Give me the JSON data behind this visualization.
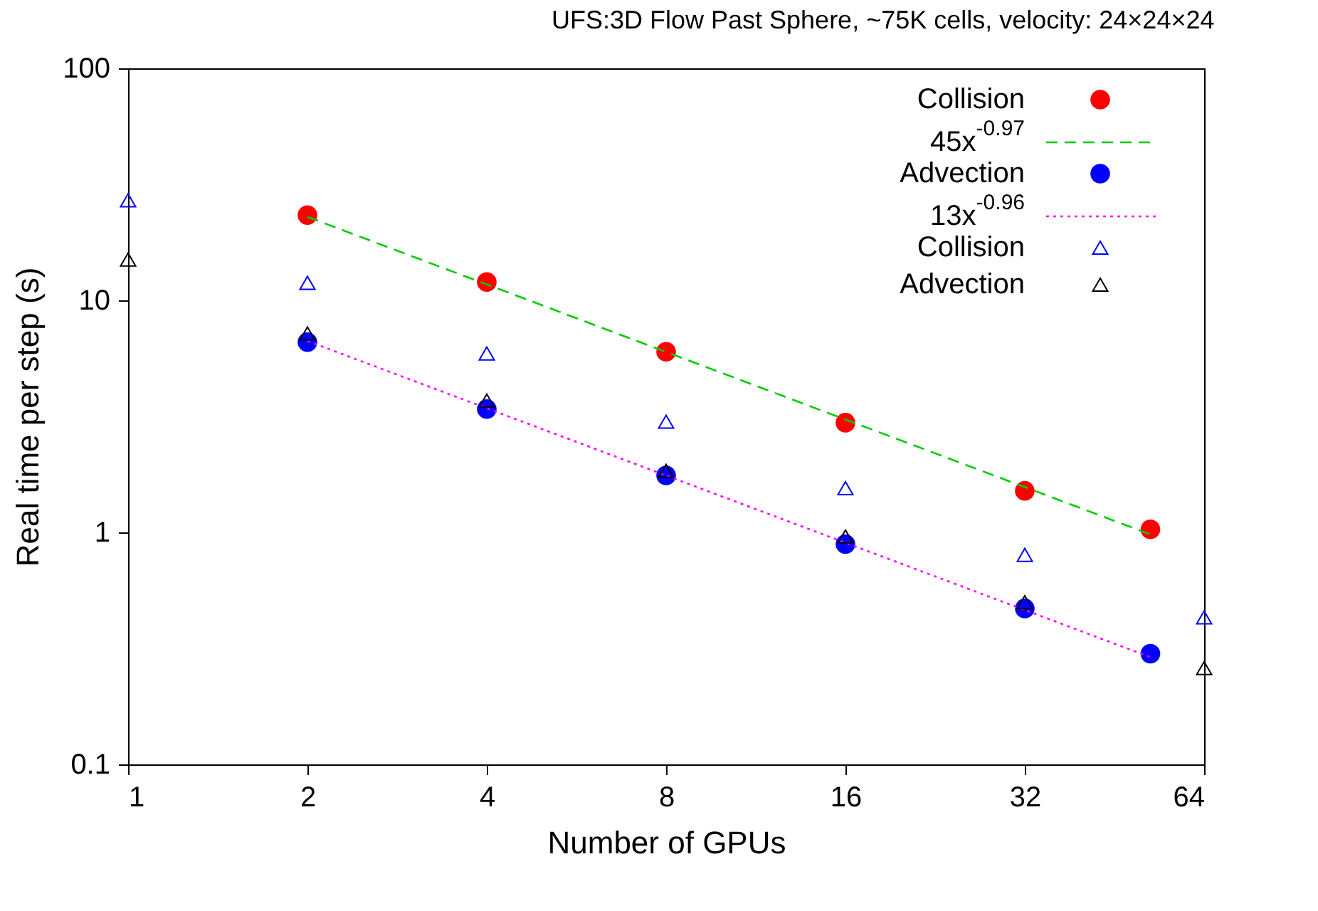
{
  "chart_data": {
    "type": "scatter",
    "title": "UFS:3D Flow Past Sphere, ~75K cells, velocity: 24×24×24",
    "xlabel": "Number of GPUs",
    "ylabel": "Real time per step (s)",
    "log": "xy",
    "xlim": [
      1,
      64
    ],
    "xticks": [
      1,
      2,
      4,
      8,
      16,
      32,
      64
    ],
    "ylim": [
      0.1,
      100
    ],
    "yticks": [
      0.1,
      1,
      10,
      100
    ],
    "grid": false,
    "legend": "top right",
    "series": [
      {
        "name": "Collision",
        "type": "scatter",
        "marker": "circle",
        "color": "#ff0000",
        "x": [
          2,
          4,
          8,
          16,
          32,
          52
        ],
        "values": [
          23.3,
          12.0,
          6.0,
          2.97,
          1.51,
          1.03
        ]
      },
      {
        "name": "45x$^{-0.97}$",
        "type": "line",
        "line_style": "dashed",
        "color": "#00cc00",
        "x": [
          2,
          52
        ],
        "values": [
          22.9,
          0.98
        ]
      },
      {
        "name": "Advection",
        "type": "scatter",
        "marker": "circle",
        "color": "#0000ff",
        "x": [
          2,
          4,
          8,
          16,
          32,
          52
        ],
        "values": [
          6.6,
          3.4,
          1.76,
          0.89,
          0.47,
          0.3
        ]
      },
      {
        "name": "13x$^{-0.96}$",
        "type": "line",
        "line_style": "dotted",
        "color": "#ff00ff",
        "x": [
          2,
          52
        ],
        "values": [
          6.68,
          0.29
        ]
      },
      {
        "name": "Collision",
        "type": "scatter",
        "marker": "triangle",
        "color": "#0000ff",
        "x": [
          1,
          2,
          4,
          8,
          16,
          32,
          64
        ],
        "values": [
          27,
          11.9,
          5.9,
          3.0,
          1.55,
          0.8,
          0.43
        ]
      },
      {
        "name": "Advection",
        "type": "scatter",
        "marker": "triangle",
        "color": "#000000",
        "x": [
          1,
          2,
          4,
          8,
          16,
          32,
          64
        ],
        "values": [
          15,
          7.2,
          3.7,
          1.84,
          0.96,
          0.5,
          0.26
        ]
      }
    ]
  }
}
